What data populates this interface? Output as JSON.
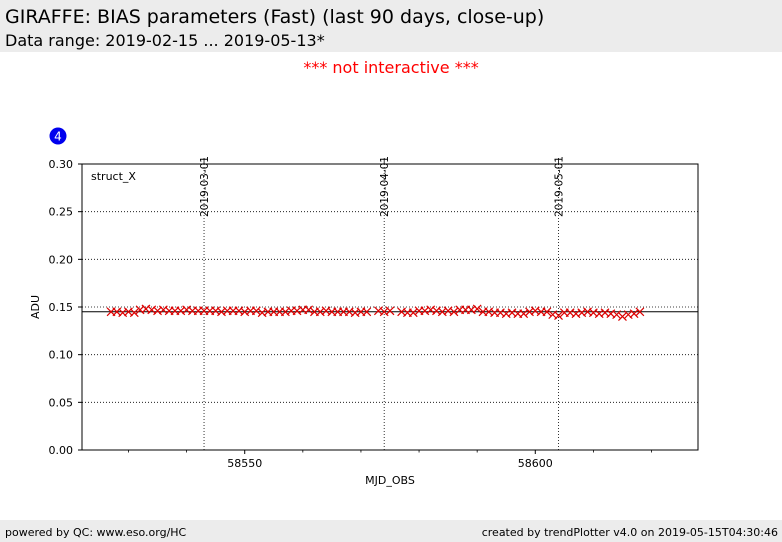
{
  "header": {
    "title": "GIRAFFE: BIAS parameters (Fast) (last 90 days, close-up)",
    "subtitle": "Data range: 2019-02-15 ... 2019-05-13*"
  },
  "notice": "*** not interactive ***",
  "badge": {
    "number": "4",
    "color": "#0000ee"
  },
  "footer": {
    "left": "powered by QC: www.eso.org/HC",
    "right": "created by trendPlotter v4.0 on 2019-05-15T04:30:46"
  },
  "colors": {
    "points": "#dd0000",
    "reference_line": "#000000"
  },
  "chart_data": {
    "type": "scatter",
    "panel_label": "struct_X",
    "xlabel": "MJD_OBS",
    "ylabel": "ADU",
    "xlim": [
      58522,
      58628
    ],
    "ylim": [
      0.0,
      0.3
    ],
    "xticks": [
      58550,
      58600
    ],
    "xticklabels": [
      "58550",
      "58600"
    ],
    "xminor_step": 10,
    "yticks": [
      0.0,
      0.05,
      0.1,
      0.15,
      0.2,
      0.25,
      0.3
    ],
    "yticklabels": [
      "0.00",
      "0.05",
      "0.10",
      "0.15",
      "0.20",
      "0.25",
      "0.30"
    ],
    "grid": "dotted horizontal at y ticks; dotted vertical at date markers",
    "reference_line": 0.145,
    "date_markers": [
      {
        "label": "2019-03-01",
        "mjd": 58543
      },
      {
        "label": "2019-04-01",
        "mjd": 58574
      },
      {
        "label": "2019-05-01",
        "mjd": 58604
      }
    ],
    "marker": "x",
    "series": [
      {
        "x": [
          58527,
          58528,
          58529,
          58530,
          58531,
          58532,
          58533,
          58534,
          58535,
          58536,
          58537,
          58538,
          58539,
          58540,
          58541,
          58542,
          58543,
          58544,
          58545,
          58546,
          58547,
          58548,
          58549,
          58550,
          58551,
          58552,
          58553,
          58554,
          58555,
          58556,
          58557,
          58558,
          58559,
          58560,
          58561,
          58562,
          58563,
          58564,
          58565,
          58566,
          58567,
          58568,
          58569,
          58570,
          58571,
          58573,
          58574,
          58575,
          58577,
          58578,
          58579,
          58580,
          58581,
          58582,
          58583,
          58584,
          58585,
          58586,
          58587,
          58588,
          58589,
          58590,
          58591,
          58592,
          58593,
          58594,
          58595,
          58596,
          58597,
          58598,
          58599,
          58600,
          58601,
          58602,
          58603,
          58604,
          58605,
          58606,
          58607,
          58608,
          58609,
          58610,
          58611,
          58612,
          58613,
          58614,
          58615,
          58616,
          58617,
          58618
        ],
        "y": [
          0.145,
          0.145,
          0.144,
          0.145,
          0.144,
          0.147,
          0.148,
          0.147,
          0.146,
          0.147,
          0.146,
          0.146,
          0.146,
          0.147,
          0.146,
          0.146,
          0.146,
          0.146,
          0.146,
          0.145,
          0.146,
          0.146,
          0.146,
          0.145,
          0.146,
          0.146,
          0.144,
          0.145,
          0.145,
          0.145,
          0.145,
          0.146,
          0.146,
          0.147,
          0.147,
          0.145,
          0.145,
          0.146,
          0.145,
          0.145,
          0.145,
          0.145,
          0.144,
          0.145,
          0.145,
          0.146,
          0.145,
          0.146,
          0.145,
          0.144,
          0.144,
          0.146,
          0.146,
          0.147,
          0.146,
          0.145,
          0.146,
          0.145,
          0.147,
          0.147,
          0.147,
          0.148,
          0.145,
          0.145,
          0.144,
          0.144,
          0.143,
          0.144,
          0.143,
          0.143,
          0.145,
          0.146,
          0.145,
          0.145,
          0.142,
          0.141,
          0.144,
          0.144,
          0.143,
          0.144,
          0.145,
          0.144,
          0.143,
          0.144,
          0.143,
          0.142,
          0.14,
          0.142,
          0.143,
          0.145
        ]
      }
    ]
  }
}
